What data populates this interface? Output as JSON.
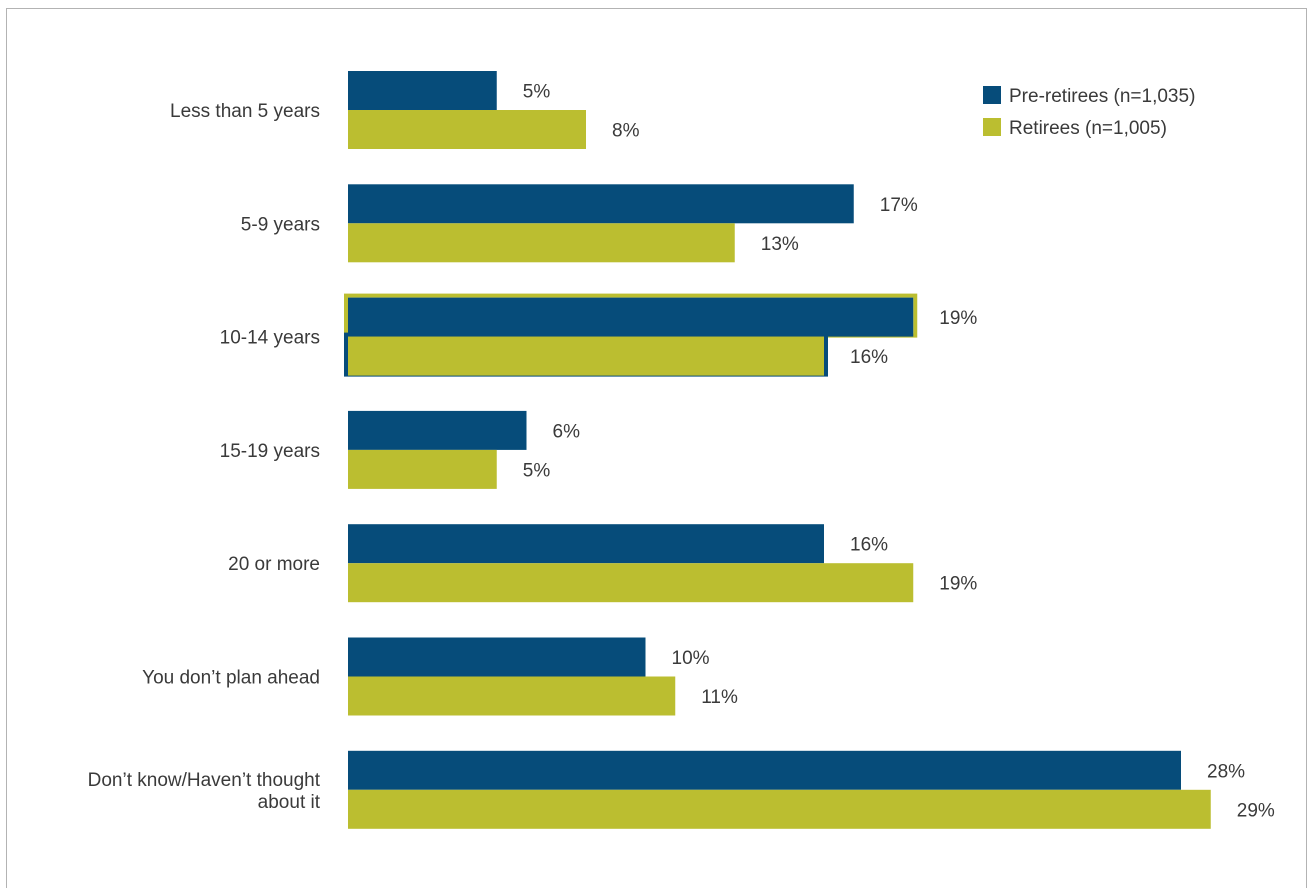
{
  "chart_data": {
    "type": "bar",
    "orientation": "horizontal",
    "categories": [
      "Less than 5 years",
      "5-9 years",
      "10-14 years",
      "15-19 years",
      "20 or more",
      "You don’t plan ahead",
      "Don’t know/Haven’t thought about it"
    ],
    "series": [
      {
        "name": "Pre-retirees (n=1,035)",
        "color": "#064c7a",
        "values": [
          5,
          17,
          19,
          6,
          16,
          10,
          28
        ],
        "labels": [
          "5%",
          "17%",
          "19%",
          "6%",
          "16%",
          "10%",
          "28%"
        ]
      },
      {
        "name": "Retirees (n=1,005)",
        "color": "#bbbe30",
        "values": [
          8,
          13,
          16,
          5,
          19,
          11,
          29
        ],
        "labels": [
          "8%",
          "13%",
          "16%",
          "5%",
          "19%",
          "11%",
          "29%"
        ]
      }
    ],
    "highlighted_category": "10-14 years",
    "title": "",
    "xlabel": "",
    "ylabel": "",
    "grid": false,
    "legend_position": "top-right"
  }
}
